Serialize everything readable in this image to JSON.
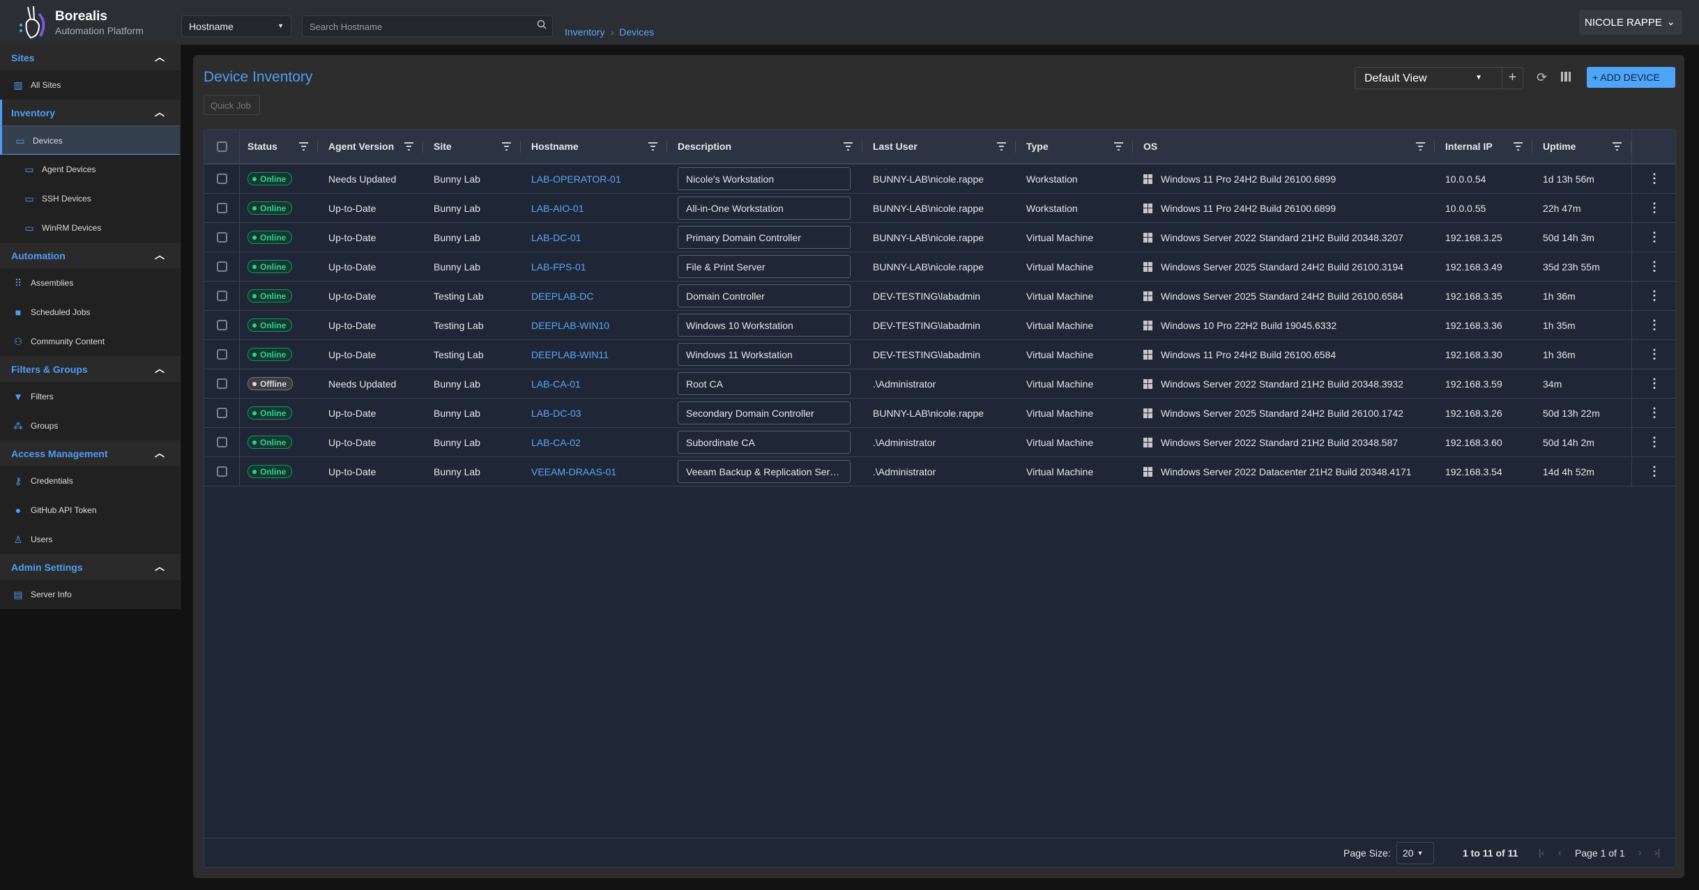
{
  "app": {
    "name": "Borealis",
    "subtitle": "Automation Platform"
  },
  "header": {
    "search_field": "Hostname",
    "search_placeholder": "Search Hostname",
    "breadcrumb": [
      "Inventory",
      "Devices"
    ],
    "user": "NICOLE RAPPE"
  },
  "sidebar": {
    "sections": [
      {
        "label": "Sites",
        "items": [
          {
            "label": "All Sites",
            "icon": "building-icon"
          }
        ]
      },
      {
        "label": "Inventory",
        "items": [
          {
            "label": "Devices",
            "icon": "devices-icon"
          },
          {
            "label": "Agent Devices",
            "icon": "devices-icon"
          },
          {
            "label": "SSH Devices",
            "icon": "devices-icon"
          },
          {
            "label": "WinRM Devices",
            "icon": "devices-icon"
          }
        ]
      },
      {
        "label": "Automation",
        "items": [
          {
            "label": "Assemblies",
            "icon": "grid-icon"
          },
          {
            "label": "Scheduled Jobs",
            "icon": "briefcase-icon"
          },
          {
            "label": "Community Content",
            "icon": "people-icon"
          }
        ]
      },
      {
        "label": "Filters & Groups",
        "items": [
          {
            "label": "Filters",
            "icon": "filter-icon"
          },
          {
            "label": "Groups",
            "icon": "groups-icon"
          }
        ]
      },
      {
        "label": "Access Management",
        "items": [
          {
            "label": "Credentials",
            "icon": "key-icon"
          },
          {
            "label": "GitHub API Token",
            "icon": "github-icon"
          },
          {
            "label": "Users",
            "icon": "user-icon"
          }
        ]
      },
      {
        "label": "Admin Settings",
        "items": [
          {
            "label": "Server Info",
            "icon": "server-icon"
          }
        ]
      }
    ]
  },
  "main": {
    "title": "Device Inventory",
    "quick_job": "Quick Job",
    "view": "Default View",
    "add_device": "ADD DEVICE",
    "columns": [
      "Status",
      "Agent Version",
      "Site",
      "Hostname",
      "Description",
      "Last User",
      "Type",
      "OS",
      "Internal IP",
      "Uptime"
    ],
    "rows": [
      {
        "status": "Online",
        "agent": "Needs Updated",
        "site": "Bunny Lab",
        "host": "LAB-OPERATOR-01",
        "desc": "Nicole's Workstation",
        "user": "BUNNY-LAB\\nicole.rappe",
        "type": "Workstation",
        "os": "Windows 11 Pro 24H2 Build 26100.6899",
        "ip": "10.0.0.54",
        "uptime": "1d 13h 56m"
      },
      {
        "status": "Online",
        "agent": "Up-to-Date",
        "site": "Bunny Lab",
        "host": "LAB-AIO-01",
        "desc": "All-in-One Workstation",
        "user": "BUNNY-LAB\\nicole.rappe",
        "type": "Workstation",
        "os": "Windows 11 Pro 24H2 Build 26100.6899",
        "ip": "10.0.0.55",
        "uptime": "22h 47m"
      },
      {
        "status": "Online",
        "agent": "Up-to-Date",
        "site": "Bunny Lab",
        "host": "LAB-DC-01",
        "desc": "Primary Domain Controller",
        "user": "BUNNY-LAB\\nicole.rappe",
        "type": "Virtual Machine",
        "os": "Windows Server 2022 Standard 21H2 Build 20348.3207",
        "ip": "192.168.3.25",
        "uptime": "50d 14h 3m"
      },
      {
        "status": "Online",
        "agent": "Up-to-Date",
        "site": "Bunny Lab",
        "host": "LAB-FPS-01",
        "desc": "File & Print Server",
        "user": "BUNNY-LAB\\nicole.rappe",
        "type": "Virtual Machine",
        "os": "Windows Server 2025 Standard 24H2 Build 26100.3194",
        "ip": "192.168.3.49",
        "uptime": "35d 23h 55m"
      },
      {
        "status": "Online",
        "agent": "Up-to-Date",
        "site": "Testing Lab",
        "host": "DEEPLAB-DC",
        "desc": "Domain Controller",
        "user": "DEV-TESTING\\labadmin",
        "type": "Virtual Machine",
        "os": "Windows Server 2025 Standard 24H2 Build 26100.6584",
        "ip": "192.168.3.35",
        "uptime": "1h 36m"
      },
      {
        "status": "Online",
        "agent": "Up-to-Date",
        "site": "Testing Lab",
        "host": "DEEPLAB-WIN10",
        "desc": "Windows 10 Workstation",
        "user": "DEV-TESTING\\labadmin",
        "type": "Virtual Machine",
        "os": "Windows 10 Pro 22H2 Build 19045.6332",
        "ip": "192.168.3.36",
        "uptime": "1h 35m"
      },
      {
        "status": "Online",
        "agent": "Up-to-Date",
        "site": "Testing Lab",
        "host": "DEEPLAB-WIN11",
        "desc": "Windows 11 Workstation",
        "user": "DEV-TESTING\\labadmin",
        "type": "Virtual Machine",
        "os": "Windows 11 Pro 24H2 Build 26100.6584",
        "ip": "192.168.3.30",
        "uptime": "1h 36m"
      },
      {
        "status": "Offline",
        "agent": "Needs Updated",
        "site": "Bunny Lab",
        "host": "LAB-CA-01",
        "desc": "Root CA",
        "user": ".\\Administrator",
        "type": "Virtual Machine",
        "os": "Windows Server 2022 Standard 21H2 Build 20348.3932",
        "ip": "192.168.3.59",
        "uptime": "34m"
      },
      {
        "status": "Online",
        "agent": "Up-to-Date",
        "site": "Bunny Lab",
        "host": "LAB-DC-03",
        "desc": "Secondary Domain Controller",
        "user": "BUNNY-LAB\\nicole.rappe",
        "type": "Virtual Machine",
        "os": "Windows Server 2025 Standard 24H2 Build 26100.1742",
        "ip": "192.168.3.26",
        "uptime": "50d 13h 22m"
      },
      {
        "status": "Online",
        "agent": "Up-to-Date",
        "site": "Bunny Lab",
        "host": "LAB-CA-02",
        "desc": "Subordinate CA",
        "user": ".\\Administrator",
        "type": "Virtual Machine",
        "os": "Windows Server 2022 Standard 21H2 Build 20348.587",
        "ip": "192.168.3.60",
        "uptime": "50d 14h 2m"
      },
      {
        "status": "Online",
        "agent": "Up-to-Date",
        "site": "Bunny Lab",
        "host": "VEEAM-DRAAS-01",
        "desc": "Veeam Backup & Replication Server",
        "user": ".\\Administrator",
        "type": "Virtual Machine",
        "os": "Windows Server 2022 Datacenter 21H2 Build 20348.4171",
        "ip": "192.168.3.54",
        "uptime": "14d 4h 52m"
      }
    ],
    "footer": {
      "page_size_label": "Page Size:",
      "page_size": "20",
      "range": "1 to 11 of 11",
      "page": "Page 1 of 1"
    }
  },
  "colors": {
    "accent": "#4e9cf5",
    "online": "#33d08f",
    "offline": "#777777",
    "add_button": "#4ea4f6"
  }
}
